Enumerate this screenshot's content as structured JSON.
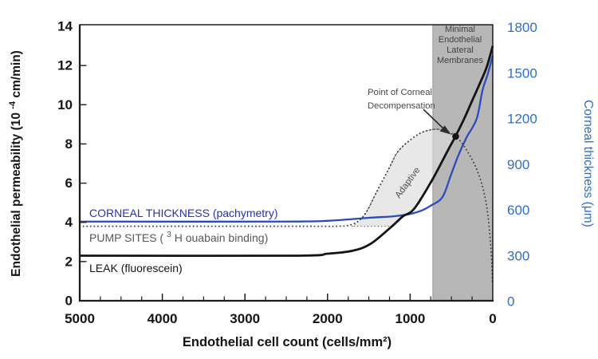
{
  "figure": {
    "background": "#ffffff",
    "frame_color": "#1c1c1c",
    "band_edge_color": "#979797"
  },
  "chart_data": {
    "type": "line",
    "title": "",
    "x_axis": {
      "label": "Endothelial cell count (cells/mm²)",
      "ticks": [
        5000,
        4000,
        3000,
        2000,
        1000,
        0
      ],
      "minor_tick_step": 250,
      "range": [
        5000,
        0
      ],
      "reversed": true,
      "color": "#141414"
    },
    "y_axis_left": {
      "label_full": "Endothelial permeability (10⁻⁴cm/min)",
      "label_pre": "Endothelial permeability (10",
      "label_sup": "-4",
      "label_post": "cm/min)",
      "ticks": [
        0,
        2,
        4,
        6,
        8,
        10,
        12,
        14
      ],
      "range": [
        0,
        14
      ],
      "color": "#141414"
    },
    "y_axis_right": {
      "label": "Corneal thickness (μm)",
      "ticks": [
        0,
        300,
        600,
        900,
        1200,
        1500,
        1800
      ],
      "range": [
        0,
        1800
      ],
      "color": "#2d6fc6"
    },
    "series": [
      {
        "name": "CORNEAL THICKNESS (pachymetry)",
        "axis": "right",
        "style": "solid",
        "color": "#2a4cba",
        "label_color": "#2334b2",
        "x": [
          5000,
          2600,
          2000,
          1500,
          1200,
          1000,
          850,
          750,
          610,
          510,
          420,
          320,
          195,
          125,
          60,
          0
        ],
        "values": [
          520,
          520,
          525,
          545,
          555,
          570,
          595,
          625,
          680,
          820,
          950,
          1070,
          1195,
          1380,
          1490,
          1610
        ]
      },
      {
        "name_full": "PUMP SITES (³H ouabain binding)",
        "name_pre": "PUMP SITES (",
        "name_sup": "3",
        "name_post": "H ouabain binding)",
        "axis": "left",
        "style": "dotted",
        "color": "#3f3f3f",
        "label_color": "#595959",
        "x": [
          5000,
          2300,
          1900,
          1700,
          1550,
          1400,
          1250,
          1150,
          1000,
          850,
          680,
          560,
          450,
          350,
          250,
          175,
          105,
          60,
          30,
          12,
          3
        ],
        "values": [
          3.8,
          3.8,
          3.8,
          3.9,
          4.4,
          5.6,
          6.8,
          7.6,
          8.2,
          8.6,
          8.75,
          8.6,
          8.4,
          7.9,
          7.2,
          6.5,
          5.5,
          4.4,
          3.1,
          1.9,
          0.9
        ]
      },
      {
        "name": "LEAK (fluorescein)",
        "axis": "left",
        "style": "solid",
        "color": "#141414",
        "label_color": "#141414",
        "x": [
          5000,
          2400,
          2000,
          1700,
          1480,
          1220,
          1090,
          950,
          735,
          540,
          450,
          350,
          250,
          155,
          75,
          0
        ],
        "values": [
          2.3,
          2.3,
          2.4,
          2.55,
          2.9,
          3.8,
          4.3,
          4.7,
          6.15,
          7.7,
          8.4,
          9.25,
          10.2,
          11.1,
          11.9,
          13.0
        ]
      }
    ],
    "regions": [
      {
        "type": "vertical_band",
        "label_lines": [
          "Minimal",
          "Endothelial",
          "Lateral",
          "Membranes"
        ],
        "x_from": 725,
        "x_to": 0,
        "fill": "#b7b7b7",
        "label_color": "#424242"
      },
      {
        "type": "polygon",
        "label": "Adaptive",
        "fill": "rgba(220,220,220,0.65)",
        "label_color": "#4f4f4f",
        "points": [
          [
            1700,
            3.8
          ],
          [
            1550,
            4.4
          ],
          [
            1400,
            5.6
          ],
          [
            1250,
            6.8
          ],
          [
            1150,
            7.6
          ],
          [
            1000,
            8.2
          ],
          [
            850,
            8.6
          ],
          [
            680,
            8.75
          ],
          [
            560,
            8.63
          ],
          [
            450,
            8.4
          ],
          [
            540,
            7.7
          ],
          [
            735,
            6.15
          ],
          [
            950,
            4.7
          ],
          [
            1090,
            4.3
          ],
          [
            1220,
            3.8
          ]
        ]
      }
    ],
    "annotations": [
      {
        "label_lines": [
          "Point of Corneal",
          "Decompensation"
        ],
        "target": {
          "x": 450,
          "y_left": 8.4
        },
        "color": "#4a4a4a"
      }
    ]
  }
}
